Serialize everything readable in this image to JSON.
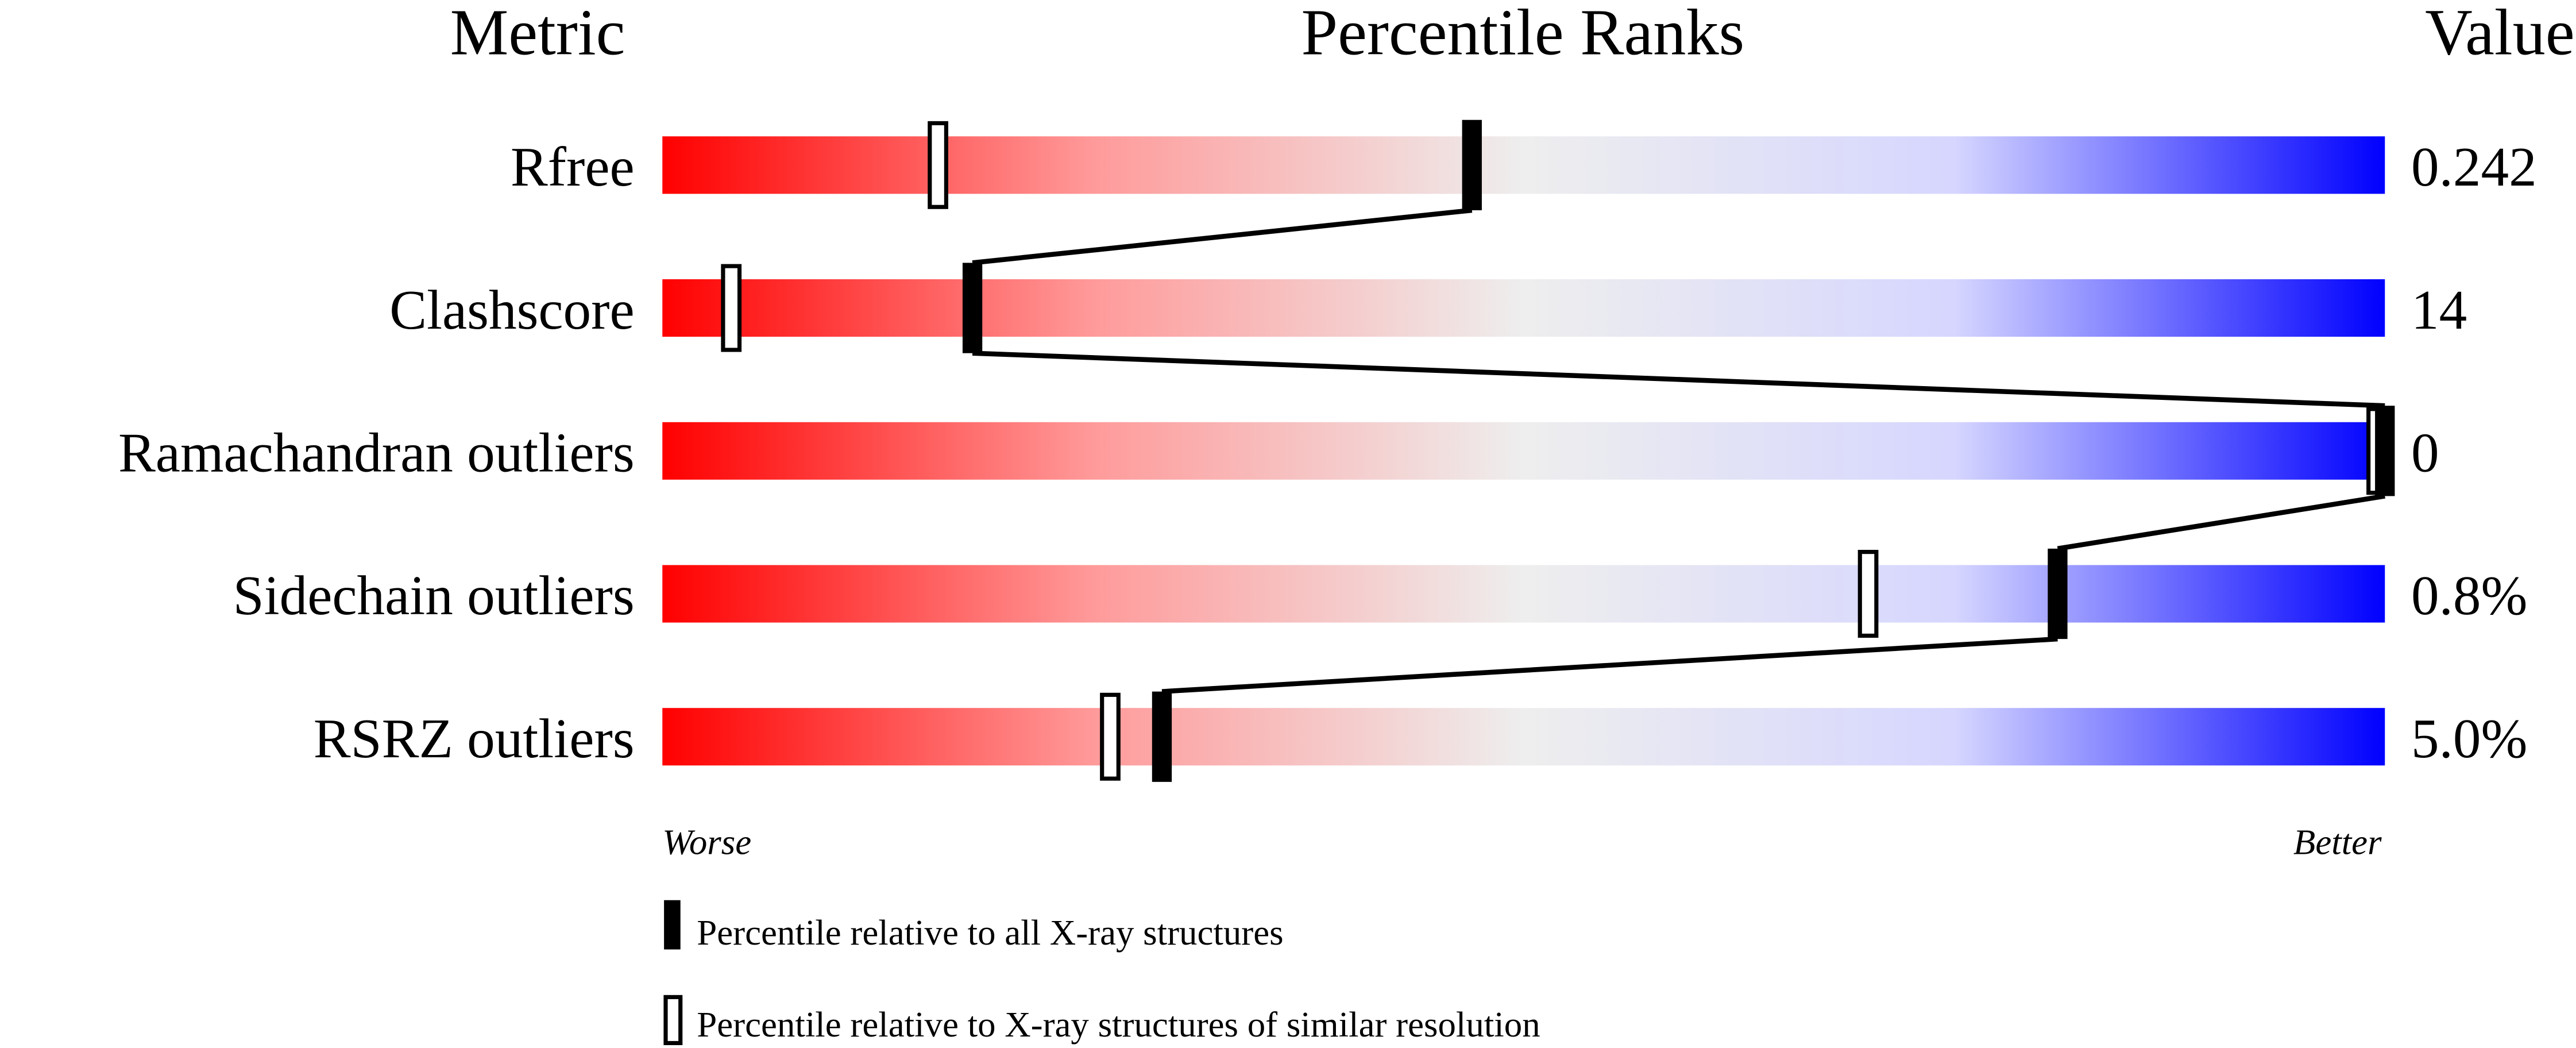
{
  "chart_data": {
    "type": "percentile-slider",
    "headers": {
      "metric": "Metric",
      "ranks": "Percentile Ranks",
      "value": "Value"
    },
    "xlim": [
      0,
      100
    ],
    "axis_labels": {
      "left": "Worse",
      "right": "Better"
    },
    "gradient_colors": [
      "#ff0000",
      "#ff9a9a",
      "#eeeeee",
      "#d6d6ff",
      "#0000ff"
    ],
    "metrics": [
      {
        "name": "Rfree",
        "value": "0.242",
        "percentile_all": 47,
        "percentile_similar": 16
      },
      {
        "name": "Clashscore",
        "value": "14",
        "percentile_all": 18,
        "percentile_similar": 4
      },
      {
        "name": "Ramachandran outliers",
        "value": "0",
        "percentile_all": 100,
        "percentile_similar": 100
      },
      {
        "name": "Sidechain outliers",
        "value": "0.8%",
        "percentile_all": 81,
        "percentile_similar": 70
      },
      {
        "name": "RSRZ outliers",
        "value": "5.0%",
        "percentile_all": 29,
        "percentile_similar": 26
      }
    ],
    "legend": [
      {
        "marker": "filled",
        "label": "Percentile relative to all X-ray structures"
      },
      {
        "marker": "open",
        "label": "Percentile relative to X-ray structures of similar resolution"
      }
    ]
  }
}
